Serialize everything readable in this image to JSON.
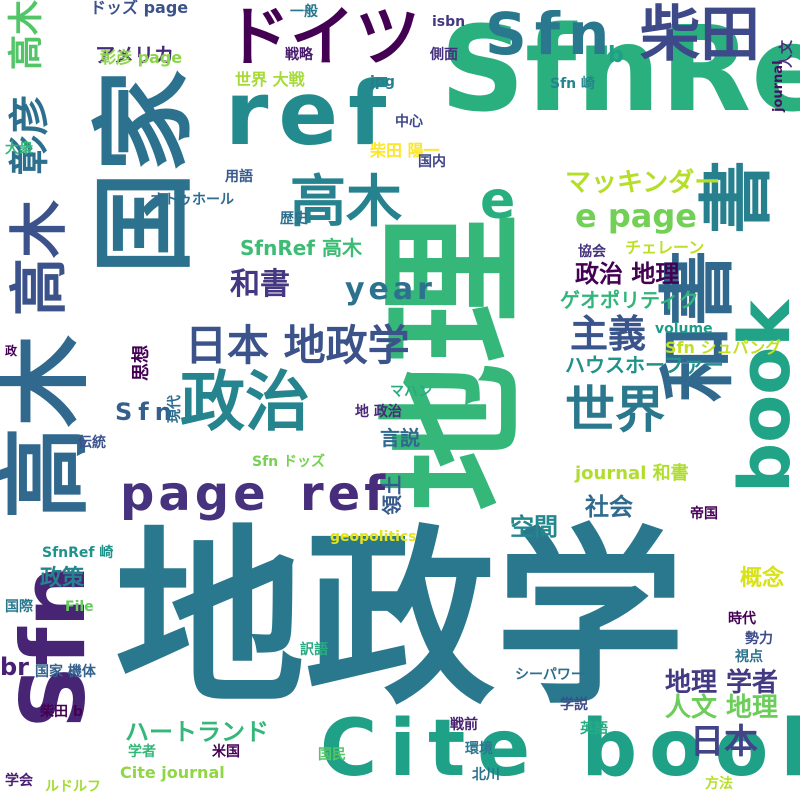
{
  "word_cloud": {
    "words": [
      {
        "text": "地政学",
        "color": "#2a788e"
      },
      {
        "text": "地理",
        "color": "#35b779"
      },
      {
        "text": "国家",
        "color": "#2c728e"
      },
      {
        "text": "SfnRef",
        "color": "#2ab07f"
      },
      {
        "text": "ref",
        "color": "#238a8d"
      },
      {
        "text": "高木",
        "color": "#31688e"
      },
      {
        "text": "高木",
        "color": "#3b528b"
      },
      {
        "text": "Sfn",
        "color": "#482475"
      },
      {
        "text": "book",
        "color": "#20a386"
      },
      {
        "text": "Cite book",
        "color": "#1fa188"
      },
      {
        "text": "ドイツ",
        "color": "#440154"
      },
      {
        "text": "和書",
        "color": "#31688e"
      },
      {
        "text": "書",
        "color": "#27808e"
      },
      {
        "text": "政治",
        "color": "#25848e"
      },
      {
        "text": "page",
        "color": "#46327e"
      },
      {
        "text": "ref",
        "color": "#472d7b"
      },
      {
        "text": "彰彦",
        "color": "#2d708e"
      },
      {
        "text": "高木",
        "color": "#26828e"
      },
      {
        "text": "柴田",
        "color": "#3e4989"
      },
      {
        "text": "Sfn",
        "color": "#2a788e"
      },
      {
        "text": "高木",
        "color": "#52c569"
      },
      {
        "text": "e",
        "color": "#29af7f"
      },
      {
        "text": "e page",
        "color": "#73d056"
      },
      {
        "text": "日本 地政学",
        "color": "#3b528b"
      },
      {
        "text": "世界",
        "color": "#2a788e"
      },
      {
        "text": "和書",
        "color": "#453781"
      },
      {
        "text": "year",
        "color": "#2c728e"
      },
      {
        "text": "主義",
        "color": "#3a548c"
      },
      {
        "text": "日本",
        "color": "#414487"
      },
      {
        "text": "ハウスホーファー",
        "color": "#21918c"
      },
      {
        "text": "マッキンダー",
        "color": "#b5de2b"
      },
      {
        "text": "政治 地理",
        "color": "#440154"
      },
      {
        "text": "ゲオポリティク",
        "color": "#31b57b"
      },
      {
        "text": "SfnRef 高木",
        "color": "#3dbc74"
      },
      {
        "text": "アメリカ",
        "color": "#472a7a"
      },
      {
        "text": "ドッズ page",
        "color": "#3b528b"
      },
      {
        "text": "彰彦 page",
        "color": "#8bd646"
      },
      {
        "text": "地理 学者",
        "color": "#443983"
      },
      {
        "text": "人文 地理",
        "color": "#6ccd5a"
      },
      {
        "text": "ハートランド",
        "color": "#35b779"
      },
      {
        "text": "Cite journal",
        "color": "#8fd744"
      },
      {
        "text": "journal 和書",
        "color": "#b0dd2f"
      },
      {
        "text": "社会",
        "color": "#306a8e"
      },
      {
        "text": "空間",
        "color": "#23888e"
      },
      {
        "text": "政策",
        "color": "#25838e"
      },
      {
        "text": "概念",
        "color": "#d8e219"
      },
      {
        "text": "言説",
        "color": "#31688e"
      },
      {
        "text": "領土",
        "color": "#38598c"
      },
      {
        "text": "Sfn",
        "color": "#355f8d"
      },
      {
        "text": "br",
        "color": "#482173"
      },
      {
        "text": "一般",
        "color": "#2a788e"
      },
      {
        "text": "戦略",
        "color": "#481a6c"
      },
      {
        "text": "isbn",
        "color": "#443a83"
      },
      {
        "text": "側面",
        "color": "#46307e"
      },
      {
        "text": "b",
        "color": "#1f9f88"
      },
      {
        "text": "世界 大戦",
        "color": "#a5db36"
      },
      {
        "text": "jpg",
        "color": "#277f8e"
      },
      {
        "text": "Sfn 崎",
        "color": "#24868e"
      },
      {
        "text": "中心",
        "color": "#3e4989"
      },
      {
        "text": "柴田 陽一",
        "color": "#fde725"
      },
      {
        "text": "国内",
        "color": "#404688"
      },
      {
        "text": "大衆",
        "color": "#32b67a"
      },
      {
        "text": "用語",
        "color": "#375b8d"
      },
      {
        "text": "オトゥホール",
        "color": "#2f6c8e"
      },
      {
        "text": "歴史",
        "color": "#2d708e"
      },
      {
        "text": "協会",
        "color": "#46337f"
      },
      {
        "text": "チェレーン",
        "color": "#bddf26"
      },
      {
        "text": "volume",
        "color": "#1e9c89"
      },
      {
        "text": "Sfn シュパング",
        "color": "#c2df23"
      },
      {
        "text": "思想",
        "color": "#440154"
      },
      {
        "text": "現代",
        "color": "#2e6d8e"
      },
      {
        "text": "マハン",
        "color": "#25ab82"
      },
      {
        "text": "地 政治",
        "color": "#482878"
      },
      {
        "text": "伝統",
        "color": "#3b528b"
      },
      {
        "text": "Sfn ドッズ",
        "color": "#77d153"
      },
      {
        "text": "geopolitics",
        "color": "#e5e419"
      },
      {
        "text": "帝国",
        "color": "#440154"
      },
      {
        "text": "SfnRef 崎",
        "color": "#20928c"
      },
      {
        "text": "国際",
        "color": "#29798e"
      },
      {
        "text": "File",
        "color": "#65cb5e"
      },
      {
        "text": "訳語",
        "color": "#27ad81"
      },
      {
        "text": "時代",
        "color": "#440154"
      },
      {
        "text": "勢力",
        "color": "#3e4c8a"
      },
      {
        "text": "視点",
        "color": "#2c728e"
      },
      {
        "text": "国家 機体",
        "color": "#34618d"
      },
      {
        "text": "シーパワー",
        "color": "#2e6f8e"
      },
      {
        "text": "柴田 b",
        "color": "#440154"
      },
      {
        "text": "学説",
        "color": "#3e4c8a"
      },
      {
        "text": "戦前",
        "color": "#482071"
      },
      {
        "text": "英語",
        "color": "#26ad81"
      },
      {
        "text": "学者",
        "color": "#35b779"
      },
      {
        "text": "米国",
        "color": "#440154"
      },
      {
        "text": "環境",
        "color": "#2a788e"
      },
      {
        "text": "国民",
        "color": "#52c569"
      },
      {
        "text": "学会",
        "color": "#481f70"
      },
      {
        "text": "ルドルフ",
        "color": "#a5db36"
      },
      {
        "text": "北川",
        "color": "#2c738e"
      },
      {
        "text": "方法",
        "color": "#b8de29"
      },
      {
        "text": "政",
        "color": "#440154"
      },
      {
        "text": "journal",
        "color": "#471063"
      },
      {
        "text": "人文",
        "color": "#472f7d"
      }
    ]
  }
}
